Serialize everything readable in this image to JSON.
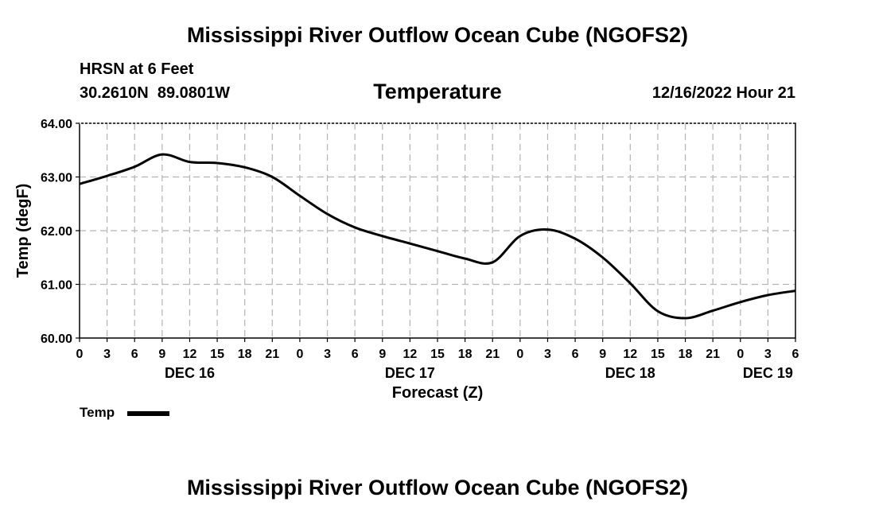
{
  "header": {
    "title": "Mississippi River Outflow Ocean Cube (NGOFS2)",
    "station": "HRSN at 6 Feet",
    "coords": "30.2610N  89.0801W",
    "variable": "Temperature",
    "datetime": "12/16/2022 Hour 21"
  },
  "footer": {
    "title": "Mississippi River Outflow Ocean Cube (NGOFS2)"
  },
  "legend": {
    "label": "Temp"
  },
  "chart_data": {
    "type": "line",
    "title": "Temperature",
    "xlabel": "Forecast (Z)",
    "ylabel": "Temp (degF)",
    "ylim": [
      60.0,
      64.0
    ],
    "xlim": [
      0,
      78
    ],
    "grid": true,
    "y_ticks": [
      "60.00",
      "61.00",
      "62.00",
      "63.00",
      "64.00"
    ],
    "x_ticks": [
      "0",
      "3",
      "6",
      "9",
      "12",
      "15",
      "18",
      "21",
      "0",
      "3",
      "6",
      "9",
      "12",
      "15",
      "18",
      "21",
      "0",
      "3",
      "6",
      "9",
      "12",
      "15",
      "18",
      "21",
      "0",
      "3",
      "6"
    ],
    "date_labels": [
      {
        "label": "DEC 16",
        "hour": 12
      },
      {
        "label": "DEC 17",
        "hour": 36
      },
      {
        "label": "DEC 18",
        "hour": 60
      },
      {
        "label": "DEC 19",
        "hour": 75
      }
    ],
    "series": [
      {
        "name": "Temp",
        "x": [
          0,
          3,
          6,
          9,
          12,
          15,
          18,
          21,
          24,
          27,
          30,
          33,
          36,
          39,
          42,
          45,
          48,
          51,
          54,
          57,
          60,
          63,
          66,
          69,
          72,
          75,
          78
        ],
        "values": [
          62.87,
          63.02,
          63.19,
          63.42,
          63.28,
          63.26,
          63.18,
          63.0,
          62.65,
          62.31,
          62.06,
          61.9,
          61.76,
          61.62,
          61.48,
          61.41,
          61.9,
          62.02,
          61.85,
          61.5,
          61.02,
          60.5,
          60.37,
          60.51,
          60.67,
          60.8,
          60.88
        ]
      }
    ]
  }
}
